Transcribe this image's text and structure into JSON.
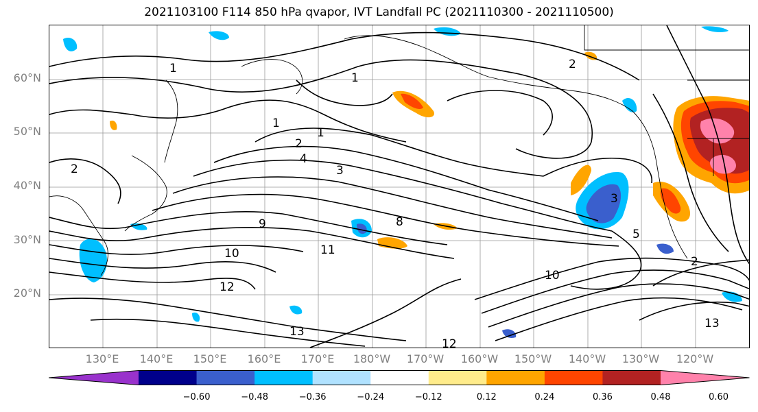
{
  "title": "2021103100 F114 850 hPa qvapor, IVT Landfall PC (2021110300 - 2021110500)",
  "lat_labels": [
    "60°N",
    "50°N",
    "40°N",
    "30°N",
    "20°N"
  ],
  "lon_labels": [
    "130°E",
    "140°E",
    "150°E",
    "160°E",
    "170°E",
    "180°W",
    "170°W",
    "160°W",
    "150°W",
    "140°W",
    "130°W",
    "120°W"
  ],
  "colorbar": {
    "colors": [
      "#9932cc",
      "#00008b",
      "#3a5fcd",
      "#00bfff",
      "#b0e2ff",
      "#ffffff",
      "#ffec8b",
      "#ffa500",
      "#ff4500",
      "#b22222",
      "#ff82ab"
    ],
    "tick_labels": [
      "−0.60",
      "−0.48",
      "−0.36",
      "−0.24",
      "−0.12",
      "0.12",
      "0.24",
      "0.36",
      "0.48",
      "0.60"
    ]
  },
  "contour_labels": [
    "1",
    "1",
    "1",
    "1",
    "2",
    "2",
    "2",
    "3",
    "3",
    "4",
    "5",
    "8",
    "9",
    "10",
    "10",
    "11",
    "12",
    "12",
    "13",
    "13",
    "2"
  ]
}
